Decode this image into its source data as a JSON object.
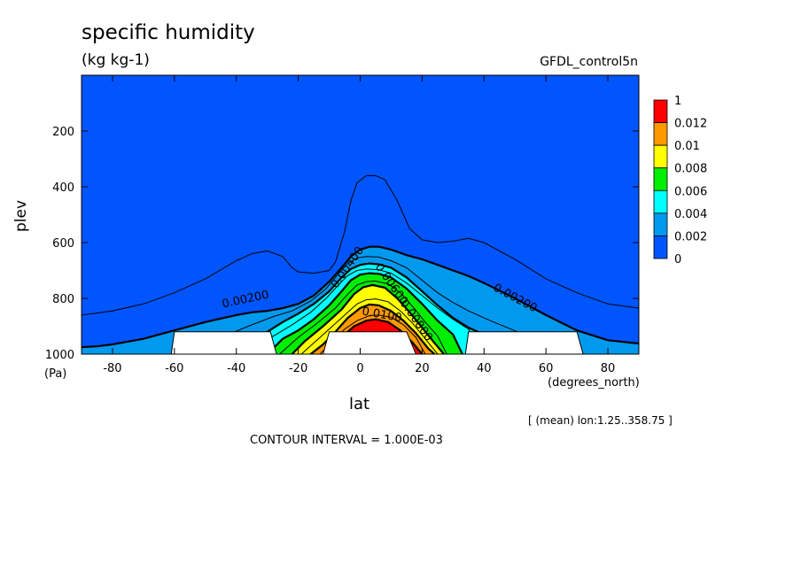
{
  "chart_data": {
    "type": "contour",
    "title": "specific humidity",
    "units": "(kg kg-1)",
    "dataset": "GFDL_control5n",
    "xlabel": "lat",
    "xunit": "(degrees_north)",
    "ylabel": "plev",
    "yunit": "(Pa)",
    "mean_note": "[ (mean) lon:1.25..358.75 ]",
    "contour_interval_text": "CONTOUR INTERVAL = 1.000E-03",
    "xlim": [
      -90,
      90
    ],
    "ylim": [
      1000,
      0
    ],
    "y_reversed": true,
    "x_ticks": [
      -80,
      -60,
      -40,
      -20,
      0,
      20,
      40,
      60,
      80
    ],
    "y_ticks": [
      200,
      400,
      600,
      800,
      1000
    ],
    "colorbar": {
      "labels": [
        "1",
        "0.012",
        "0.01",
        "0.008",
        "0.006",
        "0.004",
        "0.002",
        "0"
      ],
      "colors": [
        "#ff0000",
        "#ff9900",
        "#ffff00",
        "#00ee00",
        "#00ffff",
        "#0099ee",
        "#0055ff"
      ]
    },
    "contour_labels": [
      {
        "text": "0.00200",
        "lat": -37,
        "plev": 805
      },
      {
        "text": "0.00200",
        "lat": 50,
        "plev": 800
      },
      {
        "text": "0.00400",
        "lat": -4,
        "plev": 690
      },
      {
        "text": "0.00600",
        "lat": 10,
        "plev": 750
      },
      {
        "text": "0.00800",
        "lat": 18,
        "plev": 880
      },
      {
        "text": "0.0100",
        "lat": 7,
        "plev": 860
      }
    ],
    "levels": [
      {
        "level": 0.002,
        "color": "#0099ee",
        "points": [
          [
            -90,
            975
          ],
          [
            -85,
            972
          ],
          [
            -80,
            965
          ],
          [
            -70,
            945
          ],
          [
            -60,
            915
          ],
          [
            -50,
            885
          ],
          [
            -40,
            860
          ],
          [
            -35,
            850
          ],
          [
            -30,
            845
          ],
          [
            -25,
            835
          ],
          [
            -20,
            820
          ],
          [
            -15,
            790
          ],
          [
            -10,
            740
          ],
          [
            -6,
            690
          ],
          [
            -3,
            650
          ],
          [
            0,
            625
          ],
          [
            3,
            615
          ],
          [
            6,
            615
          ],
          [
            10,
            625
          ],
          [
            15,
            645
          ],
          [
            20,
            660
          ],
          [
            25,
            680
          ],
          [
            30,
            700
          ],
          [
            35,
            720
          ],
          [
            40,
            745
          ],
          [
            50,
            800
          ],
          [
            60,
            860
          ],
          [
            70,
            915
          ],
          [
            80,
            950
          ],
          [
            90,
            962
          ]
        ]
      },
      {
        "level": 0.004,
        "color": "#00ffff",
        "points": [
          [
            -60,
            1000
          ],
          [
            -40,
            960
          ],
          [
            -30,
            920
          ],
          [
            -25,
            885
          ],
          [
            -20,
            855
          ],
          [
            -15,
            820
          ],
          [
            -10,
            775
          ],
          [
            -6,
            725
          ],
          [
            -3,
            695
          ],
          [
            0,
            680
          ],
          [
            3,
            675
          ],
          [
            6,
            678
          ],
          [
            10,
            690
          ],
          [
            15,
            725
          ],
          [
            20,
            775
          ],
          [
            25,
            825
          ],
          [
            30,
            870
          ],
          [
            35,
            905
          ],
          [
            40,
            930
          ],
          [
            50,
            960
          ],
          [
            60,
            1000
          ]
        ]
      },
      {
        "level": 0.006,
        "color": "#00ee00",
        "points": [
          [
            -30,
            1000
          ],
          [
            -25,
            945
          ],
          [
            -20,
            915
          ],
          [
            -15,
            875
          ],
          [
            -10,
            825
          ],
          [
            -6,
            775
          ],
          [
            -3,
            735
          ],
          [
            0,
            715
          ],
          [
            3,
            710
          ],
          [
            6,
            712
          ],
          [
            10,
            725
          ],
          [
            15,
            765
          ],
          [
            20,
            820
          ],
          [
            25,
            880
          ],
          [
            30,
            930
          ],
          [
            33,
            1000
          ]
        ]
      },
      {
        "level": 0.008,
        "color": "#ffff00",
        "points": [
          [
            -22,
            1000
          ],
          [
            -18,
            955
          ],
          [
            -12,
            900
          ],
          [
            -6,
            840
          ],
          [
            -2,
            785
          ],
          [
            1,
            760
          ],
          [
            4,
            752
          ],
          [
            8,
            762
          ],
          [
            12,
            800
          ],
          [
            16,
            850
          ],
          [
            20,
            905
          ],
          [
            24,
            960
          ],
          [
            27,
            1000
          ]
        ]
      },
      {
        "level": 0.01,
        "color": "#ff9900",
        "points": [
          [
            -16,
            1000
          ],
          [
            -12,
            965
          ],
          [
            -8,
            920
          ],
          [
            -4,
            870
          ],
          [
            0,
            835
          ],
          [
            3,
            822
          ],
          [
            6,
            825
          ],
          [
            10,
            845
          ],
          [
            14,
            880
          ],
          [
            18,
            925
          ],
          [
            22,
            980
          ],
          [
            24,
            1000
          ]
        ]
      },
      {
        "level": 0.012,
        "color": "#ff0000",
        "points": [
          [
            -10,
            1000
          ],
          [
            -6,
            940
          ],
          [
            -2,
            900
          ],
          [
            2,
            880
          ],
          [
            5,
            875
          ],
          [
            9,
            885
          ],
          [
            13,
            915
          ],
          [
            17,
            960
          ],
          [
            20,
            1000
          ]
        ]
      }
    ],
    "lines_only": [
      {
        "level": 0.001,
        "points": [
          [
            -90,
            860
          ],
          [
            -80,
            845
          ],
          [
            -70,
            820
          ],
          [
            -60,
            780
          ],
          [
            -50,
            730
          ],
          [
            -40,
            665
          ],
          [
            -35,
            640
          ],
          [
            -30,
            630
          ],
          [
            -25,
            650
          ],
          [
            -22,
            690
          ],
          [
            -20,
            705
          ],
          [
            -15,
            710
          ],
          [
            -10,
            700
          ],
          [
            -8,
            670
          ],
          [
            -5,
            560
          ],
          [
            -3,
            450
          ],
          [
            -1,
            385
          ],
          [
            2,
            360
          ],
          [
            5,
            360
          ],
          [
            8,
            375
          ],
          [
            12,
            450
          ],
          [
            16,
            550
          ],
          [
            20,
            590
          ],
          [
            25,
            600
          ],
          [
            30,
            595
          ],
          [
            35,
            585
          ],
          [
            40,
            600
          ],
          [
            50,
            660
          ],
          [
            60,
            730
          ],
          [
            70,
            780
          ],
          [
            80,
            820
          ],
          [
            90,
            835
          ]
        ]
      },
      {
        "level": 0.003,
        "points": [
          [
            -60,
            1000
          ],
          [
            -45,
            940
          ],
          [
            -35,
            895
          ],
          [
            -28,
            865
          ],
          [
            -22,
            845
          ],
          [
            -16,
            810
          ],
          [
            -11,
            765
          ],
          [
            -7,
            712
          ],
          [
            -4,
            675
          ],
          [
            -1,
            655
          ],
          [
            2,
            650
          ],
          [
            6,
            652
          ],
          [
            10,
            665
          ],
          [
            15,
            690
          ],
          [
            20,
            735
          ],
          [
            25,
            780
          ],
          [
            30,
            815
          ],
          [
            35,
            845
          ],
          [
            42,
            880
          ],
          [
            52,
            925
          ],
          [
            62,
            1000
          ]
        ]
      },
      {
        "level": 0.005,
        "points": [
          [
            -40,
            1000
          ],
          [
            -28,
            935
          ],
          [
            -22,
            895
          ],
          [
            -16,
            850
          ],
          [
            -11,
            800
          ],
          [
            -7,
            752
          ],
          [
            -4,
            718
          ],
          [
            -1,
            700
          ],
          [
            2,
            695
          ],
          [
            6,
            697
          ],
          [
            10,
            710
          ],
          [
            15,
            745
          ],
          [
            20,
            790
          ],
          [
            25,
            835
          ],
          [
            30,
            875
          ],
          [
            35,
            910
          ],
          [
            40,
            1000
          ]
        ]
      },
      {
        "level": 0.007,
        "points": [
          [
            -26,
            1000
          ],
          [
            -20,
            940
          ],
          [
            -14,
            890
          ],
          [
            -8,
            835
          ],
          [
            -4,
            785
          ],
          [
            -1,
            752
          ],
          [
            2,
            740
          ],
          [
            5,
            738
          ],
          [
            9,
            748
          ],
          [
            13,
            780
          ],
          [
            17,
            830
          ],
          [
            21,
            885
          ],
          [
            25,
            935
          ],
          [
            28,
            1000
          ]
        ]
      },
      {
        "level": 0.009,
        "points": [
          [
            -19,
            1000
          ],
          [
            -14,
            950
          ],
          [
            -9,
            900
          ],
          [
            -5,
            860
          ],
          [
            -1,
            820
          ],
          [
            2,
            805
          ],
          [
            5,
            802
          ],
          [
            9,
            812
          ],
          [
            13,
            845
          ],
          [
            17,
            890
          ],
          [
            21,
            945
          ],
          [
            25,
            1000
          ]
        ]
      },
      {
        "level": 0.011,
        "points": [
          [
            -13,
            1000
          ],
          [
            -9,
            955
          ],
          [
            -5,
            910
          ],
          [
            -1,
            880
          ],
          [
            3,
            862
          ],
          [
            6,
            860
          ],
          [
            10,
            868
          ],
          [
            14,
            895
          ],
          [
            18,
            940
          ],
          [
            21,
            1000
          ]
        ]
      }
    ],
    "masked_regions": [
      [
        [
          -61,
          1000
        ],
        [
          -60,
          920
        ],
        [
          -29,
          920
        ],
        [
          -27,
          1000
        ]
      ],
      [
        [
          -12,
          1000
        ],
        [
          -10,
          920
        ],
        [
          15,
          920
        ],
        [
          18,
          1000
        ]
      ],
      [
        [
          34,
          1000
        ],
        [
          35,
          920
        ],
        [
          70,
          920
        ],
        [
          72,
          1000
        ]
      ]
    ]
  }
}
